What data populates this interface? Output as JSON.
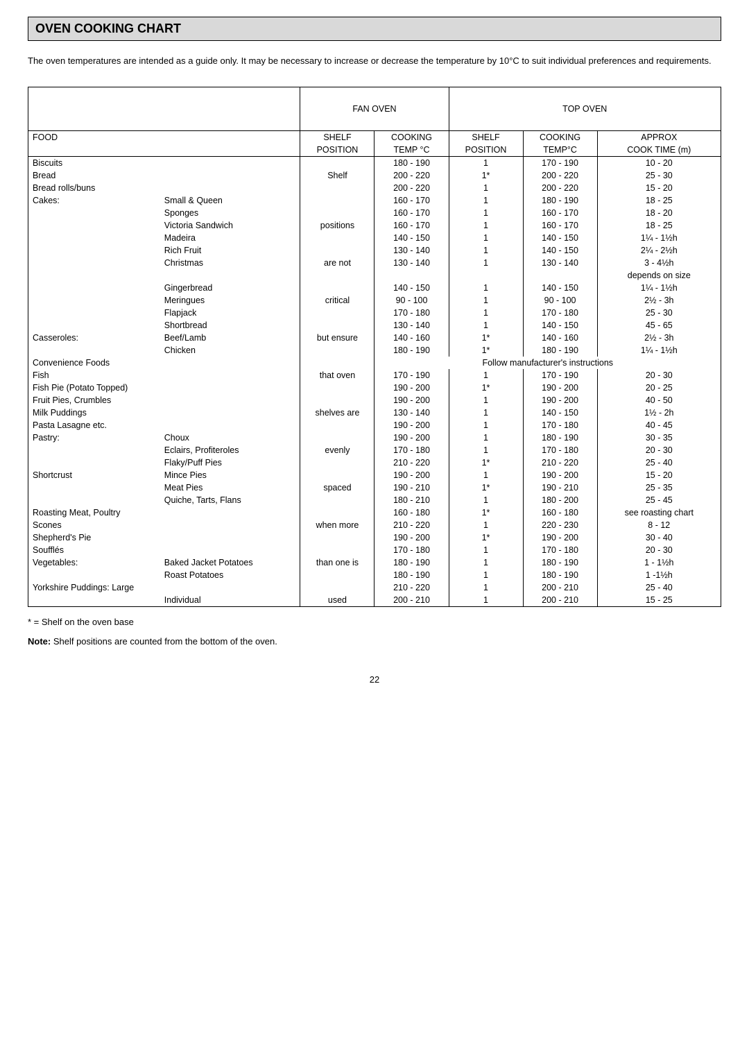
{
  "title": "OVEN COOKING CHART",
  "intro": "The oven temperatures are intended as a guide only.  It may be necessary to increase or decrease the temperature by 10°C to suit individual preferences and requirements.",
  "headers": {
    "fan_oven": "FAN OVEN",
    "top_oven": "TOP OVEN",
    "food": "FOOD",
    "shelf": "SHELF",
    "position": "POSITION",
    "cooking": "COOKING",
    "temp_c": "TEMP °C",
    "temp_c2": "TEMP°C",
    "approx": "APPROX",
    "cook_time": "COOK TIME (m)"
  },
  "shelf_notes": [
    "Shelf",
    "positions",
    "are not",
    "critical",
    "but ensure",
    "that oven",
    "shelves are",
    "evenly",
    "spaced",
    "when more",
    "than one is",
    "used"
  ],
  "rows": [
    {
      "f1": "Biscuits",
      "f2": "",
      "s": "",
      "t1": "180 - 190",
      "p": "1",
      "t2": "170 - 190",
      "ct": "10 - 20"
    },
    {
      "f1": "Bread",
      "f2": "",
      "s": "Shelf",
      "t1": "200 - 220",
      "p": "1*",
      "t2": "200 - 220",
      "ct": "25 - 30"
    },
    {
      "f1": "Bread rolls/buns",
      "f2": "",
      "s": "",
      "t1": "200 - 220",
      "p": "1",
      "t2": "200 - 220",
      "ct": "15 - 20"
    },
    {
      "f1": "Cakes:",
      "f2": "Small & Queen",
      "s": "",
      "t1": "160 - 170",
      "p": "1",
      "t2": "180 - 190",
      "ct": "18 - 25"
    },
    {
      "f1": "",
      "f2": "Sponges",
      "s": "",
      "t1": "160 - 170",
      "p": "1",
      "t2": "160 - 170",
      "ct": "18 - 20"
    },
    {
      "f1": "",
      "f2": "Victoria Sandwich",
      "s": "positions",
      "t1": "160 - 170",
      "p": "1",
      "t2": "160 - 170",
      "ct": "18 - 25"
    },
    {
      "f1": "",
      "f2": "Madeira",
      "s": "",
      "t1": "140 - 150",
      "p": "1",
      "t2": "140 - 150",
      "ct": "1¼ - 1½h"
    },
    {
      "f1": "",
      "f2": "Rich Fruit",
      "s": "",
      "t1": "130 - 140",
      "p": "1",
      "t2": "140 - 150",
      "ct": "2¼ - 2½h"
    },
    {
      "f1": "",
      "f2": "Christmas",
      "s": "are not",
      "t1": "130 - 140",
      "p": "1",
      "t2": "130 - 140",
      "ct": "3 - 4½h"
    },
    {
      "f1": "",
      "f2": "",
      "s": "",
      "t1": "",
      "p": "",
      "t2": "",
      "ct": "depends on size"
    },
    {
      "f1": "",
      "f2": "Gingerbread",
      "s": "",
      "t1": "140 - 150",
      "p": "1",
      "t2": "140 - 150",
      "ct": "1¼ - 1½h"
    },
    {
      "f1": "",
      "f2": "Meringues",
      "s": "critical",
      "t1": "90 - 100",
      "p": "1",
      "t2": "90 - 100",
      "ct": "2½ - 3h"
    },
    {
      "f1": "",
      "f2": "Flapjack",
      "s": "",
      "t1": "170 - 180",
      "p": "1",
      "t2": "170 - 180",
      "ct": "25 - 30"
    },
    {
      "f1": "",
      "f2": "Shortbread",
      "s": "",
      "t1": "130 - 140",
      "p": "1",
      "t2": "140 - 150",
      "ct": "45 - 65"
    },
    {
      "f1": "Casseroles:",
      "f2": "Beef/Lamb",
      "s": "but ensure",
      "t1": "140 - 160",
      "p": "1*",
      "t2": "140 - 160",
      "ct": "2½ - 3h"
    },
    {
      "f1": "",
      "f2": "Chicken",
      "s": "",
      "t1": "180 - 190",
      "p": "1*",
      "t2": "180 - 190",
      "ct": "1¼ - 1½h"
    },
    {
      "f1": "Convenience Foods",
      "f2": "",
      "span": true,
      "note": "Follow manufacturer's instructions"
    },
    {
      "f1": "Fish",
      "f2": "",
      "s": "that oven",
      "t1": "170 - 190",
      "p": "1",
      "t2": "170 - 190",
      "ct": "20 - 30"
    },
    {
      "f1": "Fish Pie (Potato Topped)",
      "f2": "",
      "s": "",
      "t1": "190 - 200",
      "p": "1*",
      "t2": "190 - 200",
      "ct": "20 - 25"
    },
    {
      "f1": "Fruit Pies, Crumbles",
      "f2": "",
      "s": "",
      "t1": "190 - 200",
      "p": "1",
      "t2": "190 - 200",
      "ct": "40 - 50"
    },
    {
      "f1": "Milk Puddings",
      "f2": "",
      "s": "shelves are",
      "t1": "130 - 140",
      "p": "1",
      "t2": "140 - 150",
      "ct": "1½ - 2h"
    },
    {
      "f1": "Pasta Lasagne etc.",
      "f2": "",
      "s": "",
      "t1": "190 - 200",
      "p": "1",
      "t2": "170 - 180",
      "ct": "40 - 45"
    },
    {
      "f1": "Pastry:",
      "f2": "Choux",
      "s": "",
      "t1": "190 - 200",
      "p": "1",
      "t2": "180 - 190",
      "ct": "30 - 35"
    },
    {
      "f1": "",
      "f2": "Eclairs, Profiteroles",
      "s": "evenly",
      "t1": "170 - 180",
      "p": "1",
      "t2": "170 - 180",
      "ct": "20 - 30"
    },
    {
      "f1": "",
      "f2": "Flaky/Puff Pies",
      "s": "",
      "t1": "210 - 220",
      "p": "1*",
      "t2": "210 - 220",
      "ct": "25 - 40"
    },
    {
      "f1": "Shortcrust",
      "f2": "Mince Pies",
      "s": "",
      "t1": "190 - 200",
      "p": "1",
      "t2": "190 - 200",
      "ct": "15 - 20"
    },
    {
      "f1": "",
      "f2": "Meat Pies",
      "s": "spaced",
      "t1": "190 - 210",
      "p": "1*",
      "t2": "190 - 210",
      "ct": "25 - 35"
    },
    {
      "f1": "",
      "f2": "Quiche, Tarts, Flans",
      "s": "",
      "t1": "180 - 210",
      "p": "1",
      "t2": "180 - 200",
      "ct": "25 - 45"
    },
    {
      "f1": "Roasting Meat, Poultry",
      "f2": "",
      "s": "",
      "t1": "160 - 180",
      "p": "1*",
      "t2": "160 - 180",
      "ct": "see roasting chart"
    },
    {
      "f1": "Scones",
      "f2": "",
      "s": "when more",
      "t1": "210 - 220",
      "p": "1",
      "t2": "220 - 230",
      "ct": "8 - 12"
    },
    {
      "f1": "Shepherd's Pie",
      "f2": "",
      "s": "",
      "t1": "190 - 200",
      "p": "1*",
      "t2": "190 - 200",
      "ct": "30 - 40"
    },
    {
      "f1": "Soufflés",
      "f2": "",
      "s": "",
      "t1": "170 - 180",
      "p": "1",
      "t2": "170 - 180",
      "ct": "20 - 30"
    },
    {
      "f1": "Vegetables:",
      "f2": "Baked Jacket Potatoes",
      "s": "than one is",
      "t1": "180 - 190",
      "p": "1",
      "t2": "180 - 190",
      "ct": "1 - 1½h"
    },
    {
      "f1": "",
      "f2": "Roast Potatoes",
      "s": "",
      "t1": "180 - 190",
      "p": "1",
      "t2": "180 - 190",
      "ct": "1 -1½h"
    },
    {
      "f1": "Yorkshire Puddings:  Large",
      "f2": "",
      "s": "",
      "t1": "210 - 220",
      "p": "1",
      "t2": "200 - 210",
      "ct": "25 - 40"
    },
    {
      "f1": "",
      "f2": "Individual",
      "s": "used",
      "t1": "200 - 210",
      "p": "1",
      "t2": "200 - 210",
      "ct": "15 - 25",
      "last": true
    }
  ],
  "footnote": "* = Shelf on the oven base",
  "note_label": "Note:",
  "note_text": " Shelf positions are counted from the bottom of the oven.",
  "page_number": "22",
  "colors": {
    "title_bg": "#d9d9d9",
    "border": "#000000",
    "text": "#000000",
    "page_bg": "#ffffff"
  }
}
